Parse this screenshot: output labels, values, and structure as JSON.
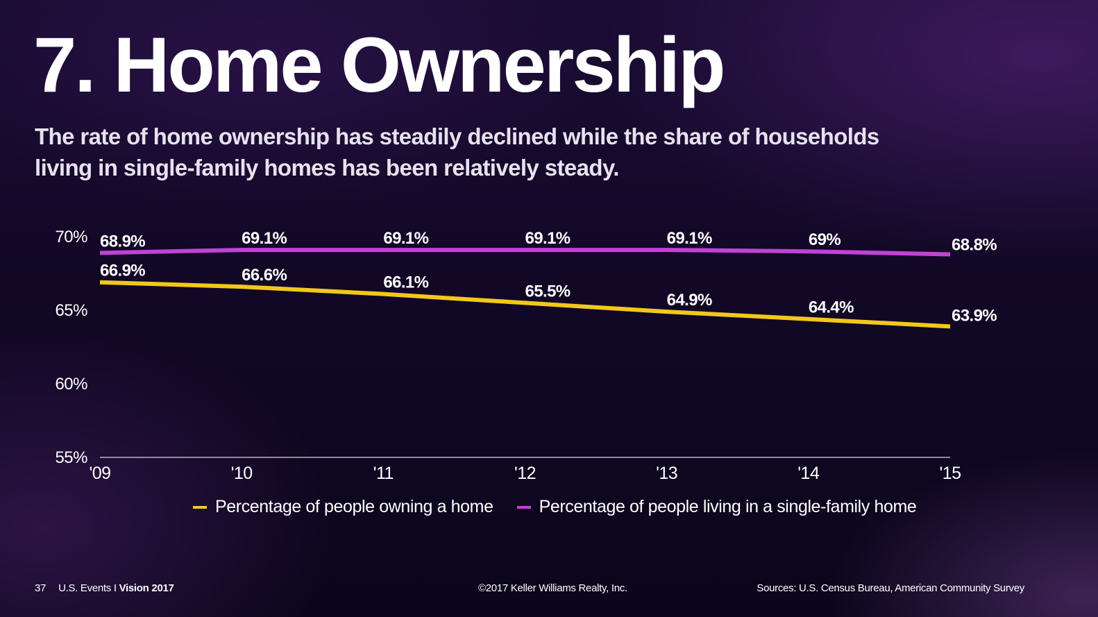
{
  "slide": {
    "title": "7. Home Ownership",
    "subtitle": "The rate of home ownership has steadily declined while the share of households living in single-family homes has been relatively steady."
  },
  "footer": {
    "page_number": "37",
    "event_prefix": "U.S. Events I ",
    "event_name": "Vision 2017",
    "copyright": "©2017 Keller Williams Realty, Inc.",
    "sources": "Sources: U.S. Census Bureau, American Community Survey"
  },
  "colors": {
    "ownership_line": "#f2c81a",
    "single_family_line": "#c043d6",
    "axis_line": "#d8d4e2"
  },
  "chart_data": {
    "type": "line",
    "x": [
      "'09",
      "'10",
      "'11",
      "'12",
      "'13",
      "'14",
      "'15"
    ],
    "ylim": [
      55,
      70
    ],
    "yticks": [
      55,
      60,
      65,
      70
    ],
    "ytick_labels": [
      "55%",
      "60%",
      "65%",
      "70%"
    ],
    "grid": false,
    "legend_position": "bottom",
    "series": [
      {
        "name": "Percentage of people owning a home",
        "values": [
          66.9,
          66.6,
          66.1,
          65.5,
          64.9,
          64.4,
          63.9
        ],
        "labels": [
          "66.9%",
          "66.6%",
          "66.1%",
          "65.5%",
          "64.9%",
          "64.4%",
          "63.9%"
        ],
        "color": "#f2c81a"
      },
      {
        "name": "Percentage of people living in a single-family home",
        "values": [
          68.9,
          69.1,
          69.1,
          69.1,
          69.1,
          69.0,
          68.8
        ],
        "labels": [
          "68.9%",
          "69.1%",
          "69.1%",
          "69.1%",
          "69.1%",
          "69%",
          "68.8%"
        ],
        "color": "#c043d6"
      }
    ]
  }
}
